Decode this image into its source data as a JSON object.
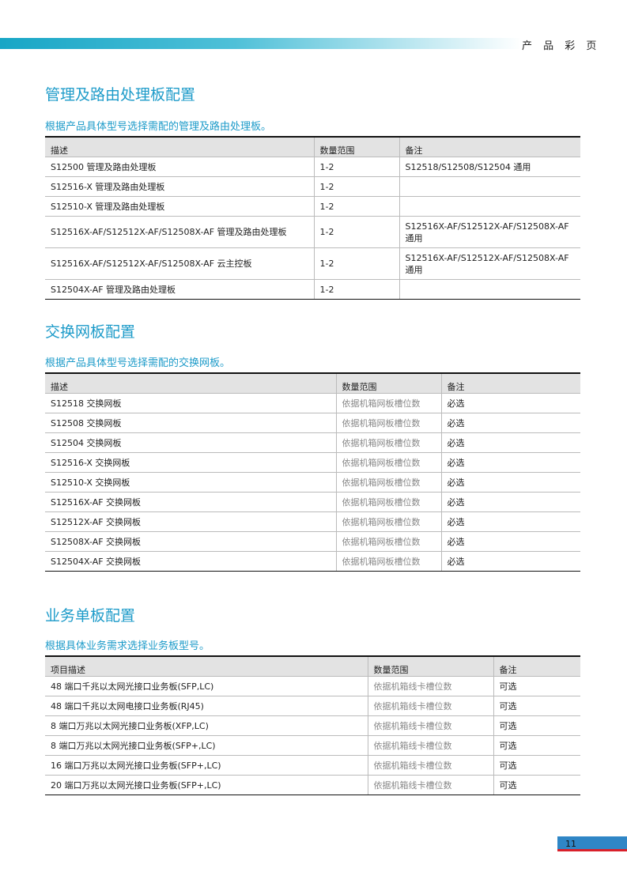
{
  "header": {
    "label": "产 品 彩 页"
  },
  "sections": [
    {
      "title": "管理及路由处理板配置",
      "subtitle": "根据产品具体型号选择需配的管理及路由处理板。",
      "columns": [
        "描述",
        "数量范围",
        "备注"
      ],
      "rows": [
        [
          "S12500  管理及路由处理板",
          "1-2",
          "S12518/S12508/S12504 通用"
        ],
        [
          "S12516-X  管理及路由处理板",
          "1-2",
          ""
        ],
        [
          "S12510-X  管理及路由处理板",
          "1-2",
          ""
        ],
        [
          "S12516X-AF/S12512X-AF/S12508X-AF 管理及路由处理板",
          "1-2",
          "S12516X-AF/S12512X-AF/S12508X-AF 通用"
        ],
        [
          "S12516X-AF/S12512X-AF/S12508X-AF 云主控板",
          "1-2",
          "S12516X-AF/S12512X-AF/S12508X-AF 通用"
        ],
        [
          "S12504X-AF 管理及路由处理板",
          "1-2",
          ""
        ]
      ]
    },
    {
      "title": "交换网板配置",
      "subtitle": "根据产品具体型号选择需配的交换网板。",
      "columns": [
        "描述",
        "数量范围",
        "备注"
      ],
      "rows": [
        [
          "S12518  交换网板",
          "依据机箱网板槽位数",
          "必选"
        ],
        [
          "S12508  交换网板",
          "依据机箱网板槽位数",
          "必选"
        ],
        [
          "S12504  交换网板",
          "依据机箱网板槽位数",
          "必选"
        ],
        [
          "S12516-X  交换网板",
          "依据机箱网板槽位数",
          "必选"
        ],
        [
          "S12510-X  交换网板",
          "依据机箱网板槽位数",
          "必选"
        ],
        [
          "S12516X-AF 交换网板",
          "依据机箱网板槽位数",
          "必选"
        ],
        [
          "S12512X-AF 交换网板",
          "依据机箱网板槽位数",
          "必选"
        ],
        [
          "S12508X-AF 交换网板",
          "依据机箱网板槽位数",
          "必选"
        ],
        [
          "S12504X-AF 交换网板",
          "依据机箱网板槽位数",
          "必选"
        ]
      ]
    },
    {
      "title": "业务单板配置",
      "subtitle": "根据具体业务需求选择业务板型号。",
      "columns": [
        "项目描述",
        "数量范围",
        "备注"
      ],
      "rows": [
        [
          "48 端口千兆以太网光接口业务板(SFP,LC)",
          "依据机箱线卡槽位数",
          "可选"
        ],
        [
          "48 端口千兆以太网电接口业务板(RJ45)",
          "依据机箱线卡槽位数",
          "可选"
        ],
        [
          "8 端口万兆以太网光接口业务板(XFP,LC)",
          "依据机箱线卡槽位数",
          "可选"
        ],
        [
          "8 端口万兆以太网光接口业务板(SFP+,LC)",
          "依据机箱线卡槽位数",
          "可选"
        ],
        [
          "16 端口万兆以太网光接口业务板(SFP+,LC)",
          "依据机箱线卡槽位数",
          "可选"
        ],
        [
          "20 端口万兆以太网光接口业务板(SFP+,LC)",
          "依据机箱线卡槽位数",
          "可选"
        ]
      ]
    }
  ],
  "page_number": "11",
  "colors": {
    "accent": "#1d9bc9",
    "page_box": "#2f86c6",
    "page_line": "#d9202a"
  }
}
